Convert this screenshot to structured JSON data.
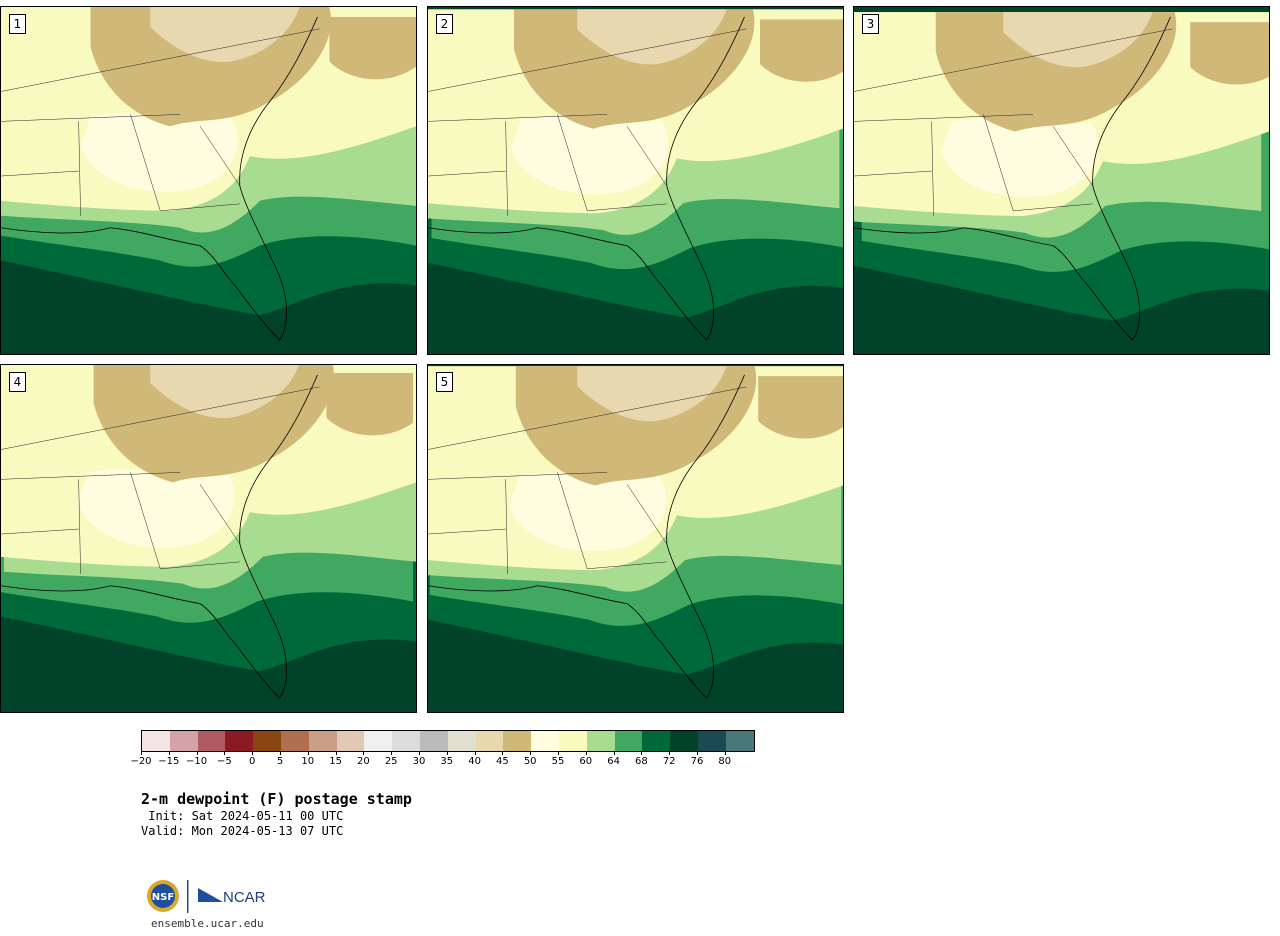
{
  "panels": [
    {
      "label": "1"
    },
    {
      "label": "2"
    },
    {
      "label": "3"
    },
    {
      "label": "4"
    },
    {
      "label": "5"
    }
  ],
  "colorbar": {
    "colors": [
      "#f5e6e6",
      "#d4a3a8",
      "#b05a62",
      "#8b1a22",
      "#8b4513",
      "#b07050",
      "#c9a087",
      "#e3c8b5",
      "#f0f0f0",
      "#dcdcdc",
      "#bbbbbb",
      "#e0e0d0",
      "#e8d8b0",
      "#d0b878",
      "#fffde0",
      "#f8fac0",
      "#a8dc90",
      "#40a860",
      "#00693a",
      "#00422a",
      "#1b4a55",
      "#4a7878"
    ],
    "ticks": [
      "−20",
      "−15",
      "−10",
      "−5",
      "0",
      "5",
      "10",
      "15",
      "20",
      "25",
      "30",
      "35",
      "40",
      "45",
      "50",
      "55",
      "60",
      "64",
      "68",
      "72",
      "76",
      "80"
    ]
  },
  "title": "2-m dewpoint (F) postage stamp",
  "init": " Init: Sat 2024-05-11 00 UTC",
  "valid": "Valid: Mon 2024-05-13 07 UTC",
  "logo": {
    "nsf": "NSF",
    "ncar": "NCAR"
  },
  "site": "ensemble.ucar.edu"
}
